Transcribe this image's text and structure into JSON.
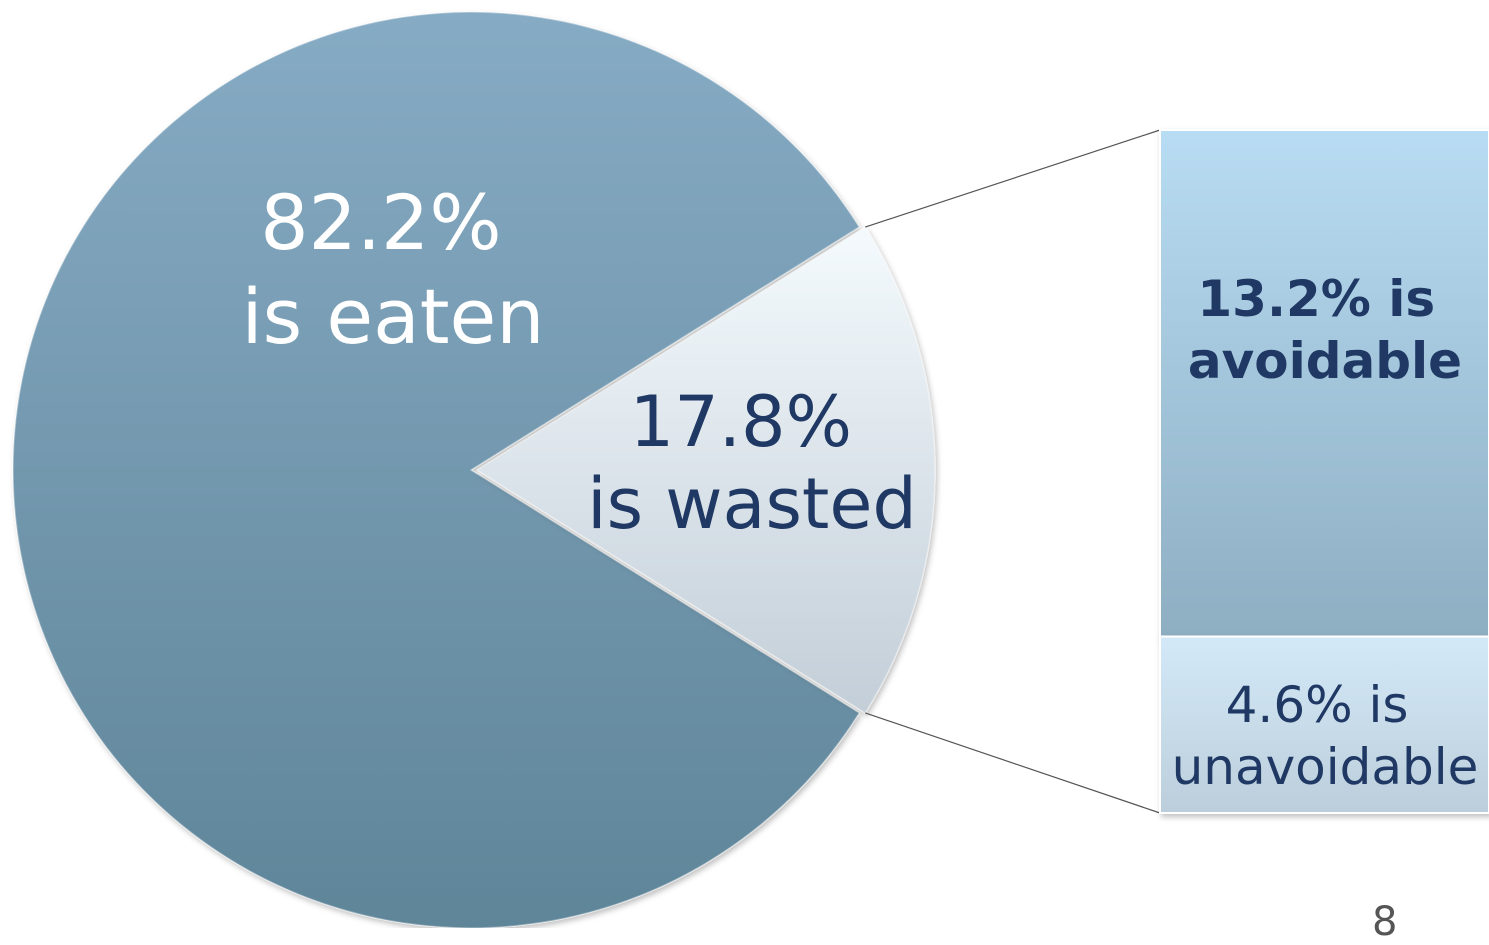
{
  "colors": {
    "eaten_top": "#86abc4",
    "eaten_bottom": "#5f8599",
    "wasted_top": "#f4fafd",
    "wasted_bottom": "#c3ced8",
    "avoidable_top": "#b8dcf3",
    "avoidable_bottom": "#8eaec2",
    "unavoidable_top": "#d3e9f7",
    "unavoidable_bottom": "#bccedc",
    "dark_text": "#1f3864",
    "connector": "#555555"
  },
  "chart_data": {
    "type": "pie",
    "slices": [
      {
        "value": 82.2,
        "label_lines": [
          "82.2%",
          "is eaten"
        ]
      },
      {
        "value": 17.8,
        "label_lines": [
          "17.8%",
          "is wasted"
        ]
      }
    ],
    "breakdown": {
      "type": "bar",
      "of_slice": 1,
      "segments": [
        {
          "value": 13.2,
          "label_lines": [
            "13.2% is",
            "avoidable"
          ]
        },
        {
          "value": 4.6,
          "label_lines": [
            "4.6% is",
            "unavoidable"
          ]
        }
      ]
    }
  },
  "page_number": "8"
}
